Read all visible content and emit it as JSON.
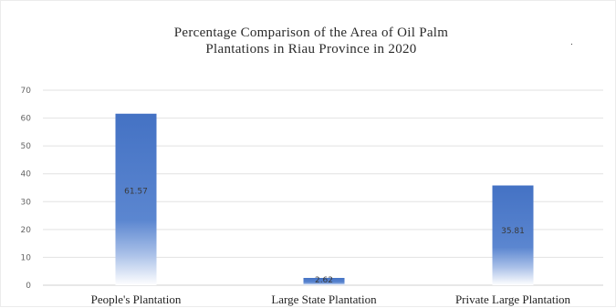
{
  "chart_data": {
    "type": "bar",
    "title_lines": [
      "Percentage Comparison of the Area of Oil Palm",
      "Plantations in Riau Province in 2020"
    ],
    "categories": [
      "People's Plantation",
      "Large State Plantation",
      "Private Large Plantation"
    ],
    "values": [
      61.57,
      2.62,
      35.81
    ],
    "data_labels": [
      "61.57",
      "2.62",
      "35.81"
    ],
    "ylim": [
      0,
      70
    ],
    "yticks": [
      0,
      10,
      20,
      30,
      40,
      50,
      60,
      70
    ],
    "xlabel": "",
    "ylabel": "",
    "grid": true,
    "legend": "none",
    "bar_color": "#4472c4"
  },
  "stray_mark": "."
}
